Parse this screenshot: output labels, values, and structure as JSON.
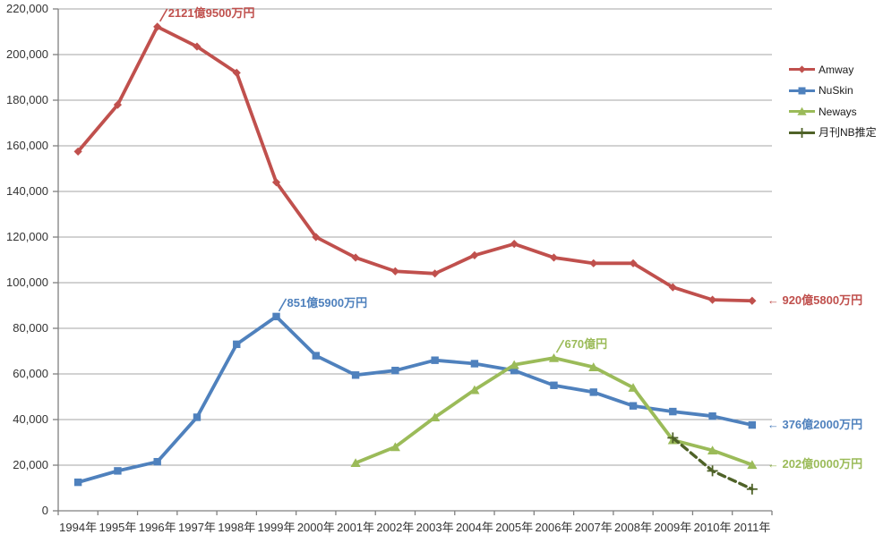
{
  "chart_data": {
    "type": "line",
    "title": "",
    "categories": [
      "1994年",
      "1995年",
      "1996年",
      "1997年",
      "1998年",
      "1999年",
      "2000年",
      "2001年",
      "2002年",
      "2003年",
      "2004年",
      "2005年",
      "2006年",
      "2007年",
      "2008年",
      "2009年",
      "2010年",
      "2011年"
    ],
    "series": [
      {
        "name": "Amway",
        "slug": "amway",
        "color": "#C0504D",
        "marker": "diamond",
        "line_style": "solid",
        "values": [
          157500,
          178000,
          212195,
          203500,
          192000,
          144000,
          120000,
          111000,
          105000,
          104000,
          112000,
          117000,
          111000,
          108500,
          108500,
          98000,
          92500,
          92058
        ]
      },
      {
        "name": "NuSkin",
        "slug": "nuskin",
        "color": "#4F81BD",
        "marker": "square",
        "line_style": "solid",
        "values": [
          12500,
          17500,
          21500,
          41000,
          73000,
          85159,
          68000,
          59500,
          61500,
          66000,
          64500,
          61500,
          55000,
          52000,
          46000,
          43500,
          41500,
          37620
        ]
      },
      {
        "name": "Neways",
        "slug": "neways",
        "color": "#9BBB59",
        "marker": "triangle",
        "line_style": "solid",
        "values": [
          null,
          null,
          null,
          null,
          null,
          null,
          null,
          21000,
          28000,
          41000,
          53000,
          64000,
          67000,
          63000,
          54000,
          31000,
          26500,
          20200
        ]
      },
      {
        "name": "月刊NB推定",
        "slug": "monthly-nb-estimate",
        "color": "#4F6228",
        "marker": "plus",
        "line_style": "dashed",
        "values": [
          null,
          null,
          null,
          null,
          null,
          null,
          null,
          null,
          null,
          null,
          null,
          null,
          null,
          null,
          null,
          32000,
          17500,
          9500
        ]
      }
    ],
    "ylim": [
      0,
      220000
    ],
    "y_tick_step": 20000,
    "y_tick_labels": [
      "0",
      "20,000",
      "40,000",
      "60,000",
      "80,000",
      "100,000",
      "120,000",
      "140,000",
      "160,000",
      "180,000",
      "200,000",
      "220,000"
    ],
    "grid": true,
    "legend_position": "right",
    "annotations": [
      {
        "id": "amway-peak",
        "text": "2121億9500万円",
        "series": 0,
        "index": 2,
        "placement": "callout"
      },
      {
        "id": "nuskin-peak",
        "text": "851億5900万円",
        "series": 1,
        "index": 5,
        "placement": "callout"
      },
      {
        "id": "neways-peak",
        "text": "670億円",
        "series": 2,
        "index": 12,
        "placement": "callout"
      },
      {
        "id": "amway-end",
        "text": "← 920億5800万円",
        "series": 0,
        "index": 17,
        "placement": "right"
      },
      {
        "id": "nuskin-end",
        "text": "← 376億2000万円",
        "series": 1,
        "index": 17,
        "placement": "right"
      },
      {
        "id": "neways-end",
        "text": "← 202億0000万円",
        "series": 2,
        "index": 17,
        "placement": "right"
      }
    ],
    "colors": {
      "axis": "#808080",
      "gridline": "#A6A6A6",
      "axis_label": "#333333",
      "legend_text": "#1a1a1a"
    }
  }
}
